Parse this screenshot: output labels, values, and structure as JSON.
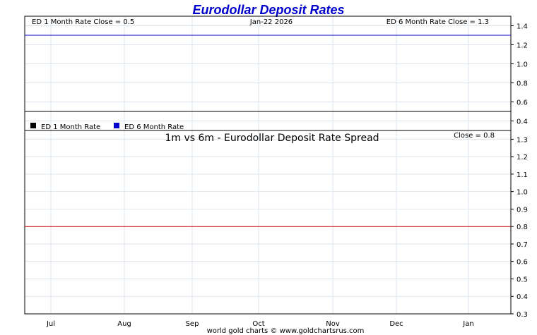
{
  "title": "Eurodollar Deposit Rates",
  "top_panel": {
    "left_label": "ED 1 Month Rate Close = 0.5",
    "date_label": "Jan-22  2026",
    "right_label": "ED 6 Month Rate Close = 1.3",
    "legend": [
      {
        "label": "ED 1 Month Rate",
        "color": "#000000"
      },
      {
        "label": "ED 6 Month Rate",
        "color": "#0000cc"
      }
    ]
  },
  "bottom_panel": {
    "title": "1m vs 6m - Eurodollar Deposit Rate Spread",
    "close_label": "Close = 0.8"
  },
  "footer": "world gold charts © www.goldchartsrus.com",
  "chart_data": [
    {
      "type": "line",
      "title": "Eurodollar Deposit Rates",
      "x_tick_labels": [
        "Jul",
        "Aug",
        "Sep",
        "Oct",
        "Nov",
        "Dec",
        "Jan"
      ],
      "y_ticks": [
        0.4,
        0.6,
        0.8,
        1.0,
        1.2,
        1.4
      ],
      "ylim": [
        0.3,
        1.5
      ],
      "grid": true,
      "series": [
        {
          "name": "ED 1 Month Rate",
          "color": "#000000",
          "x": [
            "Jun",
            "Jan"
          ],
          "values": [
            0.5,
            0.5
          ]
        },
        {
          "name": "ED 6 Month Rate",
          "color": "#0000cc",
          "x": [
            "Jun",
            "Jan"
          ],
          "values": [
            1.3,
            1.3
          ]
        }
      ]
    },
    {
      "type": "line",
      "title": "1m vs 6m - Eurodollar Deposit Rate Spread",
      "x_tick_labels": [
        "Jul",
        "Aug",
        "Sep",
        "Oct",
        "Nov",
        "Dec",
        "Jan"
      ],
      "y_ticks": [
        0.3,
        0.4,
        0.5,
        0.6,
        0.7,
        0.8,
        0.9,
        1.0,
        1.1,
        1.2,
        1.3
      ],
      "ylim": [
        0.3,
        1.35
      ],
      "grid": true,
      "series": [
        {
          "color": "#cc0000",
          "x": [
            "Jun",
            "Jan"
          ],
          "values": [
            0.8,
            0.8
          ]
        }
      ]
    }
  ]
}
